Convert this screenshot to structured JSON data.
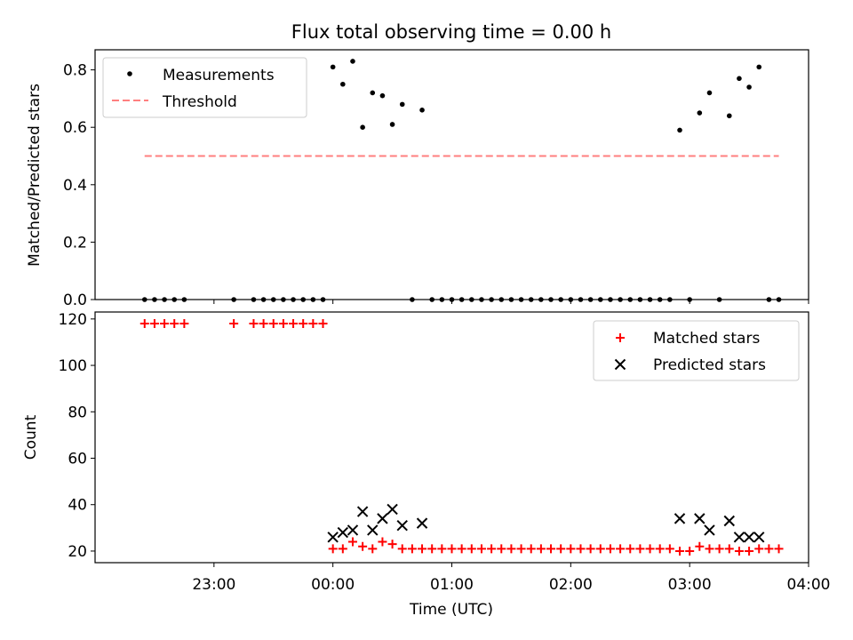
{
  "chart_data": [
    {
      "type": "scatter",
      "title": "Flux total observing time = 0.00 h",
      "xlabel": "",
      "ylabel": "Matched/Predicted stars",
      "xlim": [
        "22:00",
        "04:00"
      ],
      "ylim": [
        0,
        0.87
      ],
      "yticks": [
        "0.0",
        "0.2",
        "0.4",
        "0.6",
        "0.8"
      ],
      "legend_position": "top-left",
      "series": [
        {
          "name": "Measurements",
          "color": "#000000",
          "marker": "dot",
          "points": [
            [
              "22:25",
              0
            ],
            [
              "22:30",
              0
            ],
            [
              "22:35",
              0
            ],
            [
              "22:40",
              0
            ],
            [
              "22:45",
              0
            ],
            [
              "23:10",
              0
            ],
            [
              "23:20",
              0
            ],
            [
              "23:25",
              0
            ],
            [
              "23:30",
              0
            ],
            [
              "23:35",
              0
            ],
            [
              "23:40",
              0
            ],
            [
              "23:45",
              0
            ],
            [
              "23:50",
              0
            ],
            [
              "23:55",
              0
            ],
            [
              "00:00",
              0.81
            ],
            [
              "00:05",
              0.75
            ],
            [
              "00:10",
              0.83
            ],
            [
              "00:15",
              0.6
            ],
            [
              "00:20",
              0.72
            ],
            [
              "00:25",
              0.71
            ],
            [
              "00:30",
              0.61
            ],
            [
              "00:35",
              0.68
            ],
            [
              "00:40",
              0
            ],
            [
              "00:45",
              0.66
            ],
            [
              "00:50",
              0
            ],
            [
              "00:55",
              0
            ],
            [
              "01:00",
              0
            ],
            [
              "01:05",
              0
            ],
            [
              "01:10",
              0
            ],
            [
              "01:15",
              0
            ],
            [
              "01:20",
              0
            ],
            [
              "01:25",
              0
            ],
            [
              "01:30",
              0
            ],
            [
              "01:35",
              0
            ],
            [
              "01:40",
              0
            ],
            [
              "01:45",
              0
            ],
            [
              "01:50",
              0
            ],
            [
              "01:55",
              0
            ],
            [
              "02:00",
              0
            ],
            [
              "02:05",
              0
            ],
            [
              "02:10",
              0
            ],
            [
              "02:15",
              0
            ],
            [
              "02:20",
              0
            ],
            [
              "02:25",
              0
            ],
            [
              "02:30",
              0
            ],
            [
              "02:35",
              0
            ],
            [
              "02:40",
              0
            ],
            [
              "02:45",
              0
            ],
            [
              "02:50",
              0
            ],
            [
              "02:55",
              0.59
            ],
            [
              "03:00",
              0
            ],
            [
              "03:05",
              0.65
            ],
            [
              "03:10",
              0.72
            ],
            [
              "03:15",
              0
            ],
            [
              "03:20",
              0.64
            ],
            [
              "03:25",
              0.77
            ],
            [
              "03:30",
              0.74
            ],
            [
              "03:35",
              0.81
            ],
            [
              "03:40",
              0
            ],
            [
              "03:45",
              0
            ]
          ]
        },
        {
          "name": "Threshold",
          "color": "#ff7f7f",
          "style": "dashed",
          "points": [
            [
              "22:25",
              0.5
            ],
            [
              "03:45",
              0.5
            ]
          ]
        }
      ]
    },
    {
      "type": "scatter",
      "title": "",
      "xlabel": "Time (UTC)",
      "ylabel": "Count",
      "xlim": [
        "22:00",
        "04:00"
      ],
      "ylim": [
        15,
        123
      ],
      "yticks": [
        "20",
        "40",
        "60",
        "80",
        "100",
        "120"
      ],
      "xticks": [
        "23:00",
        "00:00",
        "01:00",
        "02:00",
        "03:00",
        "04:00"
      ],
      "legend_position": "top-right",
      "series": [
        {
          "name": "Matched stars",
          "color": "#ff0000",
          "marker": "plus",
          "points": [
            [
              "22:25",
              118
            ],
            [
              "22:30",
              118
            ],
            [
              "22:35",
              118
            ],
            [
              "22:40",
              118
            ],
            [
              "22:45",
              118
            ],
            [
              "23:10",
              118
            ],
            [
              "23:20",
              118
            ],
            [
              "23:25",
              118
            ],
            [
              "23:30",
              118
            ],
            [
              "23:35",
              118
            ],
            [
              "23:40",
              118
            ],
            [
              "23:45",
              118
            ],
            [
              "23:50",
              118
            ],
            [
              "23:55",
              118
            ],
            [
              "00:00",
              21
            ],
            [
              "00:05",
              21
            ],
            [
              "00:10",
              24
            ],
            [
              "00:15",
              22
            ],
            [
              "00:20",
              21
            ],
            [
              "00:25",
              24
            ],
            [
              "00:30",
              23
            ],
            [
              "00:35",
              21
            ],
            [
              "00:40",
              21
            ],
            [
              "00:45",
              21
            ],
            [
              "00:50",
              21
            ],
            [
              "00:55",
              21
            ],
            [
              "01:00",
              21
            ],
            [
              "01:05",
              21
            ],
            [
              "01:10",
              21
            ],
            [
              "01:15",
              21
            ],
            [
              "01:20",
              21
            ],
            [
              "01:25",
              21
            ],
            [
              "01:30",
              21
            ],
            [
              "01:35",
              21
            ],
            [
              "01:40",
              21
            ],
            [
              "01:45",
              21
            ],
            [
              "01:50",
              21
            ],
            [
              "01:55",
              21
            ],
            [
              "02:00",
              21
            ],
            [
              "02:05",
              21
            ],
            [
              "02:10",
              21
            ],
            [
              "02:15",
              21
            ],
            [
              "02:20",
              21
            ],
            [
              "02:25",
              21
            ],
            [
              "02:30",
              21
            ],
            [
              "02:35",
              21
            ],
            [
              "02:40",
              21
            ],
            [
              "02:45",
              21
            ],
            [
              "02:50",
              21
            ],
            [
              "02:55",
              20
            ],
            [
              "03:00",
              20
            ],
            [
              "03:05",
              22
            ],
            [
              "03:10",
              21
            ],
            [
              "03:15",
              21
            ],
            [
              "03:20",
              21
            ],
            [
              "03:25",
              20
            ],
            [
              "03:30",
              20
            ],
            [
              "03:35",
              21
            ],
            [
              "03:40",
              21
            ],
            [
              "03:45",
              21
            ]
          ]
        },
        {
          "name": "Predicted stars",
          "color": "#000000",
          "marker": "x",
          "points": [
            [
              "00:00",
              26
            ],
            [
              "00:05",
              28
            ],
            [
              "00:10",
              29
            ],
            [
              "00:15",
              37
            ],
            [
              "00:20",
              29
            ],
            [
              "00:25",
              34
            ],
            [
              "00:30",
              38
            ],
            [
              "00:35",
              31
            ],
            [
              "00:45",
              32
            ],
            [
              "02:55",
              34
            ],
            [
              "03:05",
              34
            ],
            [
              "03:10",
              29
            ],
            [
              "03:20",
              33
            ],
            [
              "03:25",
              26
            ],
            [
              "03:30",
              26
            ],
            [
              "03:35",
              26
            ]
          ]
        }
      ]
    }
  ]
}
